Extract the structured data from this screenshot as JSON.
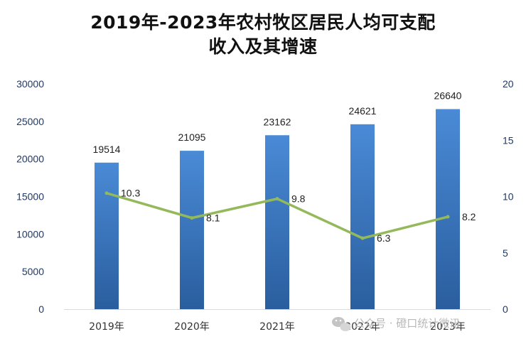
{
  "title_line1": "2019年-2023年农村牧区居民人均可支配",
  "title_line2": "收入及其增速",
  "watermark": "公众号 · 磴口统计微讯",
  "chart_data": {
    "type": "bar",
    "categories": [
      "2019年",
      "2020年",
      "2021年",
      "2022年",
      "2023年"
    ],
    "series": [
      {
        "type": "bar",
        "values": [
          19514,
          21095,
          23162,
          24621,
          26640
        ],
        "color": "#3a78c4",
        "axis": "left"
      },
      {
        "type": "line",
        "values": [
          10.3,
          8.1,
          9.8,
          6.3,
          8.2
        ],
        "color": "#93b95a",
        "axis": "right"
      }
    ],
    "bar_labels": [
      "19514",
      "21095",
      "23162",
      "24621",
      "26640"
    ],
    "line_labels": [
      "10.3",
      "8.1",
      "9.8",
      "6.3",
      "8.2"
    ],
    "ylim_left": [
      0,
      30000
    ],
    "yticks_left": [
      "0",
      "5000",
      "10000",
      "15000",
      "20000",
      "25000",
      "30000"
    ],
    "ylim_right": [
      0,
      20
    ],
    "yticks_right": [
      "0",
      "5",
      "10",
      "15",
      "20"
    ],
    "grid": false,
    "legend": "none"
  }
}
